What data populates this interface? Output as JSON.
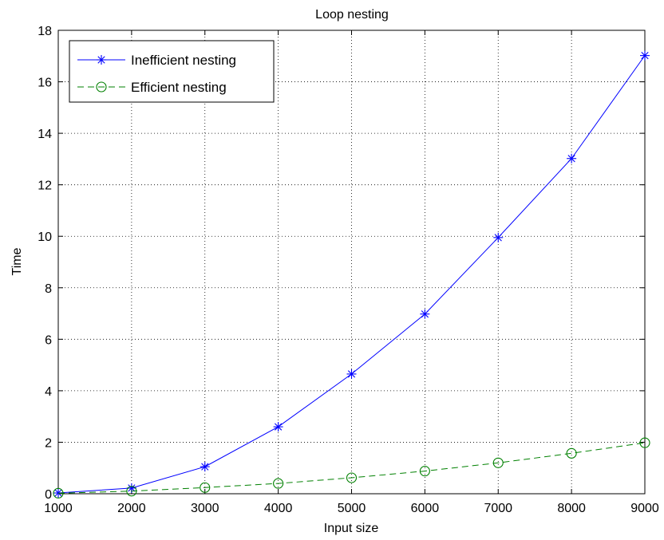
{
  "chart_data": {
    "type": "line",
    "title": "Loop nesting",
    "xlabel": "Input size",
    "ylabel": "Time",
    "x": [
      1000,
      2000,
      3000,
      4000,
      5000,
      6000,
      7000,
      8000,
      9000
    ],
    "xlim": [
      1000,
      9000
    ],
    "ylim": [
      0,
      18
    ],
    "xticks": [
      1000,
      2000,
      3000,
      4000,
      5000,
      6000,
      7000,
      8000,
      9000
    ],
    "yticks": [
      0,
      2,
      4,
      6,
      8,
      10,
      12,
      14,
      16,
      18
    ],
    "grid": true,
    "legend_position": "top-left",
    "series": [
      {
        "name": "Inefficient nesting",
        "values": [
          0.03,
          0.22,
          1.05,
          2.6,
          4.65,
          6.98,
          9.95,
          13.02,
          17.02
        ],
        "color": "#0000ff",
        "marker": "asterisk",
        "line_style": "solid"
      },
      {
        "name": "Efficient nesting",
        "values": [
          0.02,
          0.1,
          0.24,
          0.4,
          0.62,
          0.88,
          1.2,
          1.57,
          1.98
        ],
        "color": "#008000",
        "marker": "circle",
        "line_style": "dashed"
      }
    ]
  }
}
